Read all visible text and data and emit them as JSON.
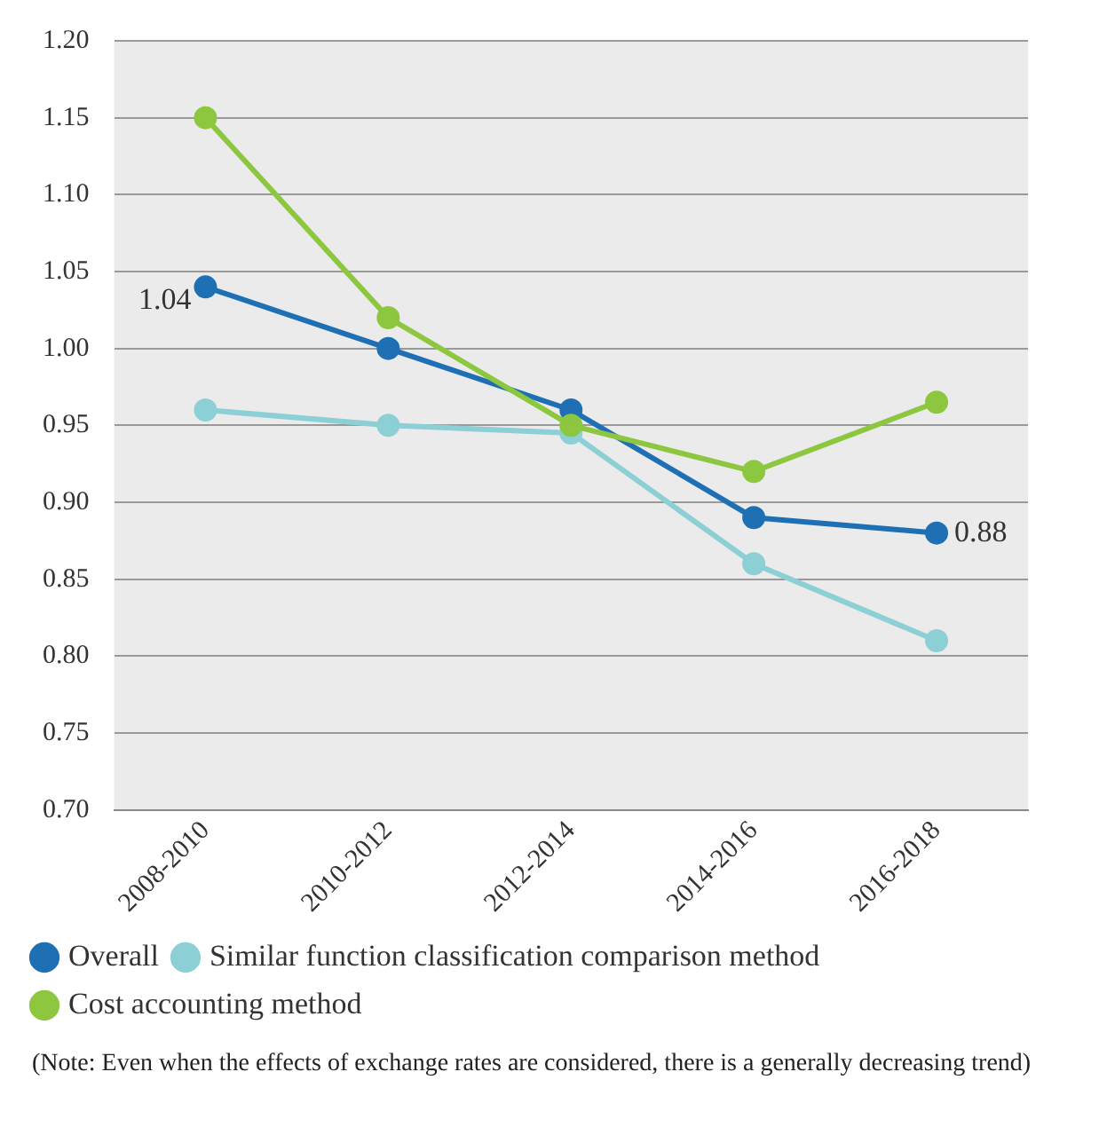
{
  "chart_data": {
    "type": "line",
    "categories": [
      "2008-2010",
      "2010-2012",
      "2012-2014",
      "2014-2016",
      "2016-2018"
    ],
    "series": [
      {
        "name": "Overall",
        "color": "#1f6fb4",
        "values": [
          1.04,
          1.0,
          0.96,
          0.89,
          0.88
        ],
        "value_labels": [
          "1.04",
          null,
          null,
          null,
          "0.88"
        ]
      },
      {
        "name": "Similar function classification comparison method",
        "color": "#8ccfd4",
        "values": [
          0.96,
          0.95,
          0.945,
          0.86,
          0.81
        ]
      },
      {
        "name": "Cost accounting method",
        "color": "#8dc63f",
        "values": [
          1.15,
          1.02,
          0.95,
          0.92,
          0.965
        ]
      }
    ],
    "ylim": [
      0.7,
      1.2
    ],
    "yticks": [
      {
        "value": 0.7,
        "label": "0.70"
      },
      {
        "value": 0.75,
        "label": "0.75"
      },
      {
        "value": 0.8,
        "label": "0.80"
      },
      {
        "value": 0.85,
        "label": "0.85"
      },
      {
        "value": 0.9,
        "label": "0.90"
      },
      {
        "value": 0.95,
        "label": "0.95"
      },
      {
        "value": 1.0,
        "label": "1.00"
      },
      {
        "value": 1.05,
        "label": "1.05"
      },
      {
        "value": 1.1,
        "label": "1.10"
      },
      {
        "value": 1.15,
        "label": "1.15"
      },
      {
        "value": 1.2,
        "label": "1.20"
      }
    ],
    "grid": "y",
    "legend": "bottom",
    "marker": "circle",
    "line_style": "solid",
    "annotations": [
      "(Note: Even when the effects of exchange rates are considered, there is a generally decreasing trend)"
    ]
  }
}
